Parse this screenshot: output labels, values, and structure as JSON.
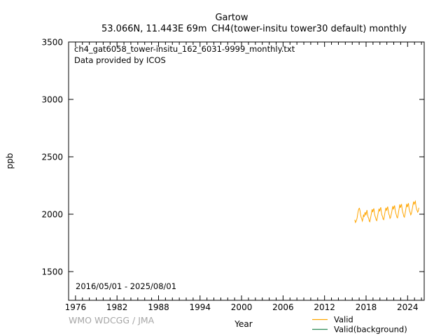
{
  "header": {
    "title": "Gartow",
    "subtitle_left": "53.066N, 11.443E 69m",
    "subtitle_right": "CH4(tower-insitu tower30 default) monthly"
  },
  "annotations": {
    "filename": "ch4_gat6058_tower-insitu_162_6031-9999_monthly.txt",
    "provider": "Data provided by ICOS",
    "period": "2016/05/01 - 2025/08/01",
    "credit": "WMO WDCGG / JMA"
  },
  "axes": {
    "xlabel": "Year",
    "ylabel": "ppb"
  },
  "legend": {
    "items": [
      {
        "label": "Valid",
        "color": "#ffa500"
      },
      {
        "label": "Valid(background)",
        "color": "#2e8b57"
      }
    ]
  },
  "colors": {
    "valid_line": "#ffa500",
    "valid_background_line": "#2e8b57",
    "frame": "#000000",
    "credit_gray": "#a6a6a6"
  },
  "chart_data": {
    "type": "line",
    "title": "Gartow",
    "xlabel": "Year",
    "ylabel": "ppb",
    "xlim": [
      1975.0,
      2026.4
    ],
    "ylim": [
      1250,
      3500
    ],
    "x_major_ticks": [
      1976,
      1982,
      1988,
      1994,
      2000,
      2006,
      2012,
      2018,
      2024
    ],
    "x_minor_step": 1,
    "y_major_ticks": [
      1500,
      2000,
      2500,
      3000,
      3500
    ],
    "grid": false,
    "legend_position": "bottom-right",
    "series": [
      {
        "name": "Valid",
        "color": "#ffa500",
        "start_year": 2016,
        "start_month": 5,
        "monthly_values": [
          1952,
          1928,
          1936,
          1950,
          1968,
          2004,
          2030,
          2048,
          2052,
          2030,
          1994,
          1972,
          1960,
          1940,
          1958,
          1996,
          1976,
          2002,
          2018,
          1990,
          2012,
          2036,
          1998,
          1974,
          1966,
          1940,
          1934,
          1962,
          1986,
          2016,
          2042,
          2018,
          2038,
          2050,
          2004,
          1984,
          1970,
          1950,
          1944,
          1972,
          1998,
          2024,
          2048,
          2024,
          2044,
          2060,
          2018,
          1992,
          1980,
          1958,
          1952,
          1978,
          2008,
          2036,
          2056,
          2030,
          2050,
          2066,
          2028,
          2000,
          1988,
          1964,
          1972,
          1996,
          2020,
          2048,
          2070,
          2042,
          2062,
          2076,
          2034,
          2010,
          1994,
          1974,
          1968,
          1992,
          2026,
          2052,
          2086,
          2056,
          2072,
          2088,
          2044,
          2018,
          2002,
          1980,
          1974,
          2000,
          2030,
          2060,
          2090,
          2062,
          2080,
          2096,
          2052,
          2028,
          2014,
          1994,
          2004,
          2030,
          2056,
          2086,
          2110,
          2088,
          2100,
          2112,
          2070,
          2044,
          2032,
          2018,
          2028,
          2056
        ]
      },
      {
        "name": "Valid(background)",
        "color": "#2e8b57",
        "monthly_values": []
      }
    ]
  }
}
